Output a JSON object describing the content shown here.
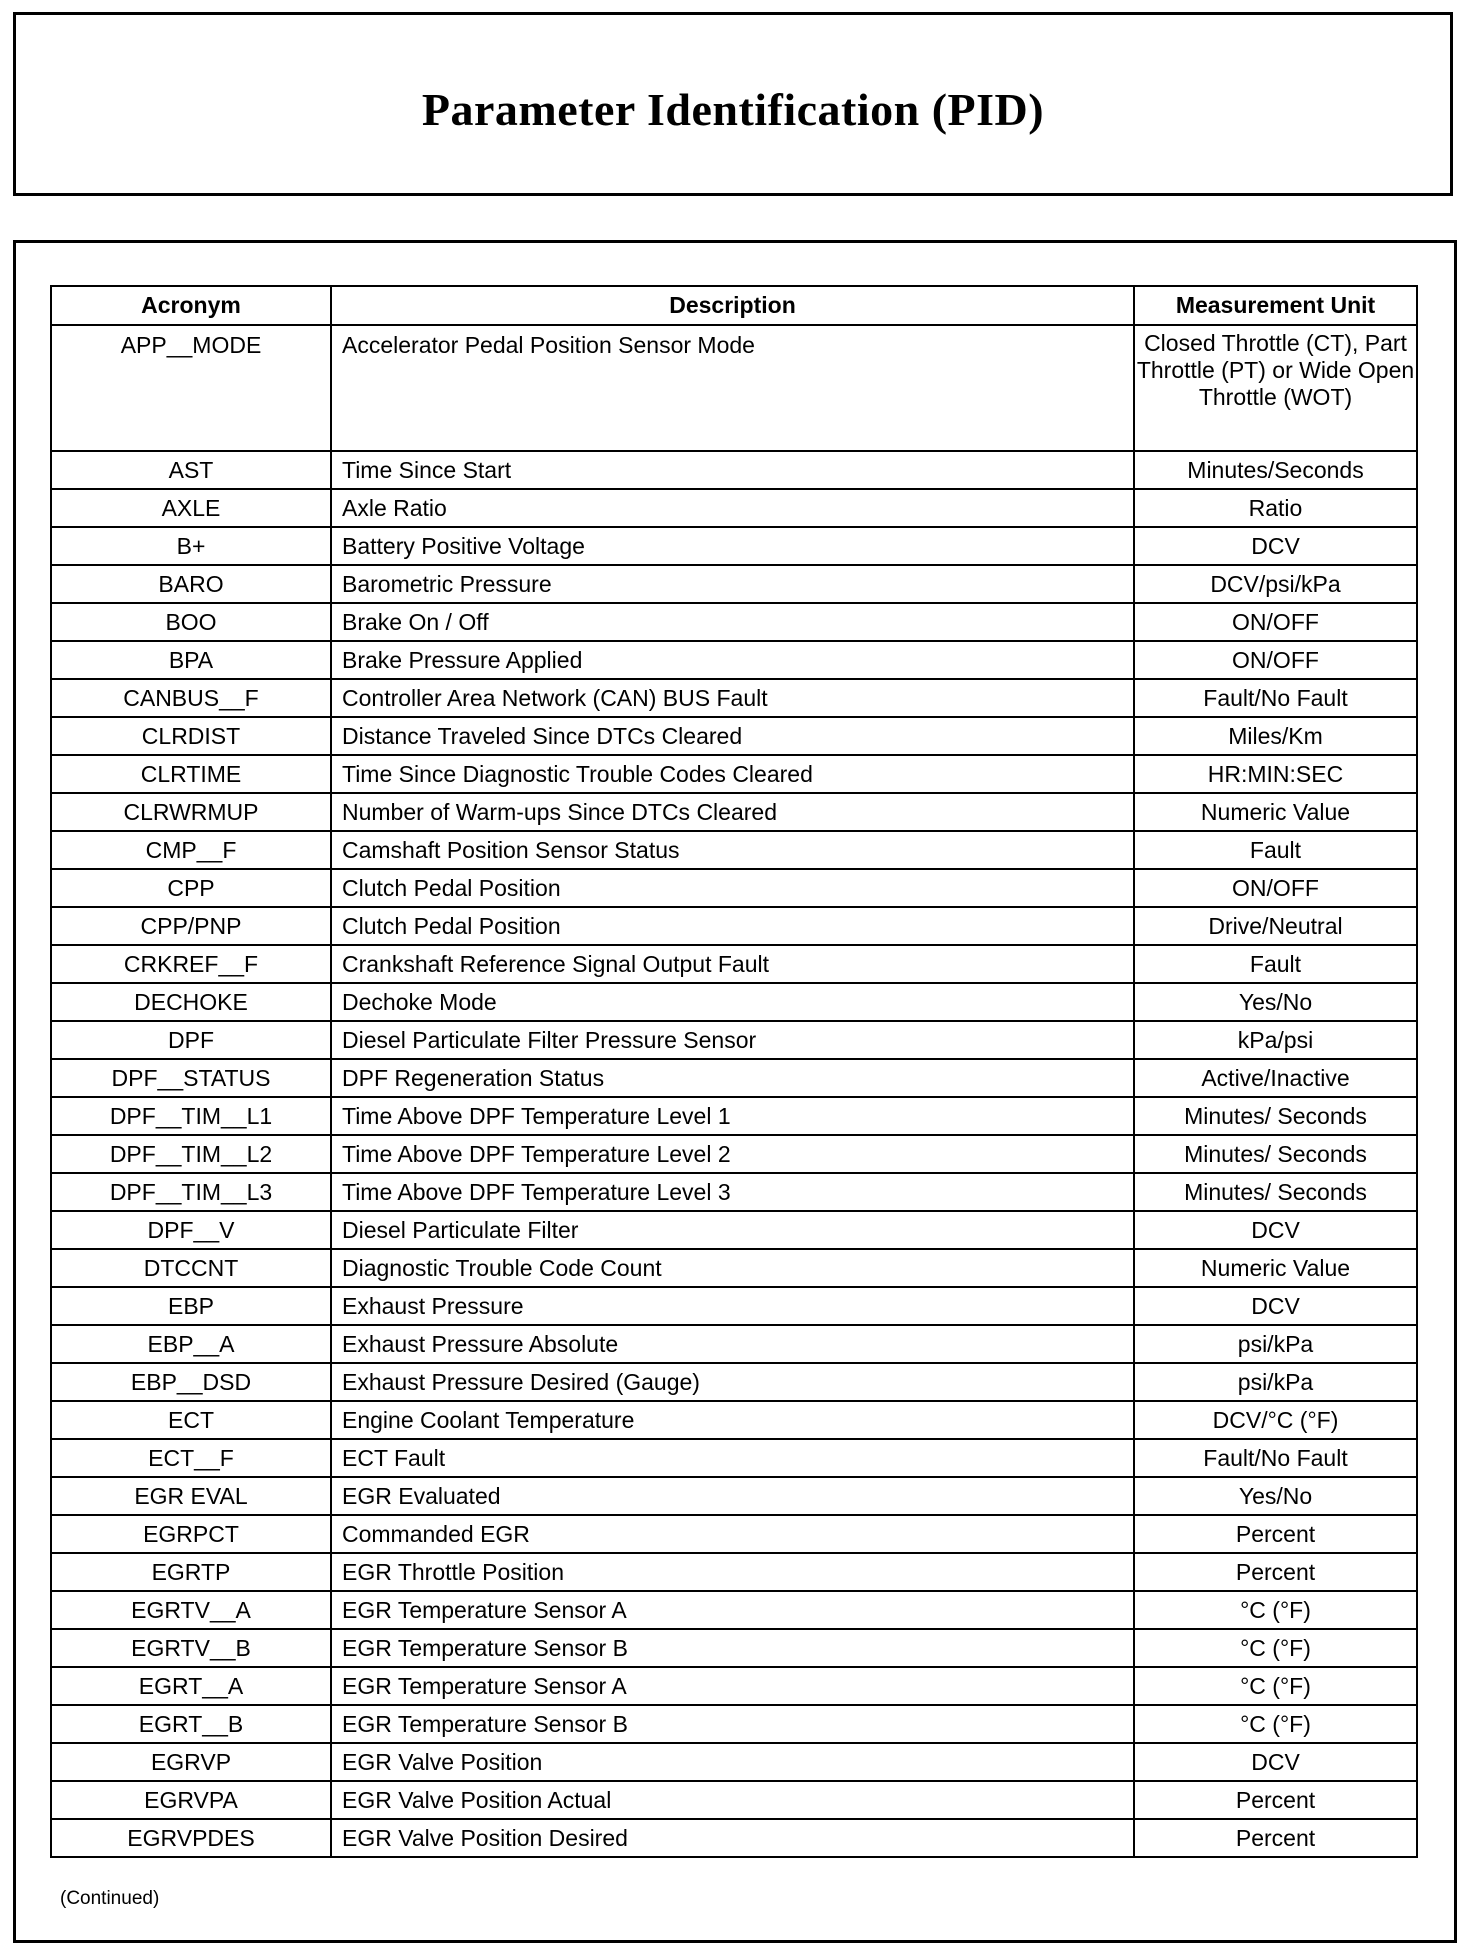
{
  "title": "Parameter Identification (PID)",
  "table": {
    "headers": [
      "Acronym",
      "Description",
      "Measurement Unit"
    ],
    "rows": [
      {
        "acronym": "APP__MODE",
        "description": "Accelerator Pedal Position Sensor Mode",
        "unit": "Closed Throttle (CT), Part Throttle (PT) or Wide Open Throttle (WOT)"
      },
      {
        "acronym": "AST",
        "description": "Time Since Start",
        "unit": "Minutes/Seconds"
      },
      {
        "acronym": "AXLE",
        "description": "Axle Ratio",
        "unit": "Ratio"
      },
      {
        "acronym": "B+",
        "description": "Battery Positive Voltage",
        "unit": "DCV"
      },
      {
        "acronym": "BARO",
        "description": "Barometric Pressure",
        "unit": "DCV/psi/kPa"
      },
      {
        "acronym": "BOO",
        "description": "Brake On / Off",
        "unit": "ON/OFF"
      },
      {
        "acronym": "BPA",
        "description": "Brake Pressure Applied",
        "unit": "ON/OFF"
      },
      {
        "acronym": "CANBUS__F",
        "description": "Controller Area Network (CAN) BUS Fault",
        "unit": "Fault/No Fault"
      },
      {
        "acronym": "CLRDIST",
        "description": "Distance Traveled Since DTCs Cleared",
        "unit": "Miles/Km"
      },
      {
        "acronym": "CLRTIME",
        "description": "Time Since Diagnostic Trouble Codes Cleared",
        "unit": "HR:MIN:SEC"
      },
      {
        "acronym": "CLRWRMUP",
        "description": "Number of Warm-ups Since DTCs Cleared",
        "unit": "Numeric Value"
      },
      {
        "acronym": "CMP__F",
        "description": "Camshaft Position Sensor Status",
        "unit": "Fault"
      },
      {
        "acronym": "CPP",
        "description": "Clutch Pedal Position",
        "unit": "ON/OFF"
      },
      {
        "acronym": "CPP/PNP",
        "description": "Clutch Pedal Position",
        "unit": "Drive/Neutral"
      },
      {
        "acronym": "CRKREF__F",
        "description": "Crankshaft Reference Signal Output Fault",
        "unit": "Fault"
      },
      {
        "acronym": "DECHOKE",
        "description": "Dechoke Mode",
        "unit": "Yes/No"
      },
      {
        "acronym": "DPF",
        "description": "Diesel Particulate Filter Pressure Sensor",
        "unit": "kPa/psi"
      },
      {
        "acronym": "DPF__STATUS",
        "description": "DPF Regeneration Status",
        "unit": "Active/Inactive"
      },
      {
        "acronym": "DPF__TIM__L1",
        "description": "Time Above DPF Temperature Level 1",
        "unit": "Minutes/ Seconds"
      },
      {
        "acronym": "DPF__TIM__L2",
        "description": "Time Above DPF Temperature Level 2",
        "unit": "Minutes/ Seconds"
      },
      {
        "acronym": "DPF__TIM__L3",
        "description": "Time Above DPF Temperature Level 3",
        "unit": "Minutes/ Seconds"
      },
      {
        "acronym": "DPF__V",
        "description": "Diesel Particulate Filter",
        "unit": "DCV"
      },
      {
        "acronym": "DTCCNT",
        "description": "Diagnostic Trouble Code Count",
        "unit": "Numeric Value"
      },
      {
        "acronym": "EBP",
        "description": "Exhaust Pressure",
        "unit": "DCV"
      },
      {
        "acronym": "EBP__A",
        "description": "Exhaust Pressure Absolute",
        "unit": "psi/kPa"
      },
      {
        "acronym": "EBP__DSD",
        "description": "Exhaust Pressure Desired (Gauge)",
        "unit": "psi/kPa"
      },
      {
        "acronym": "ECT",
        "description": "Engine Coolant Temperature",
        "unit": "DCV/°C (°F)"
      },
      {
        "acronym": "ECT__F",
        "description": "ECT Fault",
        "unit": "Fault/No Fault"
      },
      {
        "acronym": "EGR EVAL",
        "description": "EGR Evaluated",
        "unit": "Yes/No"
      },
      {
        "acronym": "EGRPCT",
        "description": "Commanded EGR",
        "unit": "Percent"
      },
      {
        "acronym": "EGRTP",
        "description": "EGR Throttle Position",
        "unit": "Percent"
      },
      {
        "acronym": "EGRTV__A",
        "description": "EGR Temperature Sensor A",
        "unit": "°C (°F)"
      },
      {
        "acronym": "EGRTV__B",
        "description": "EGR Temperature Sensor B",
        "unit": "°C (°F)"
      },
      {
        "acronym": "EGRT__A",
        "description": "EGR Temperature Sensor A",
        "unit": "°C (°F)"
      },
      {
        "acronym": "EGRT__B",
        "description": "EGR Temperature Sensor B",
        "unit": "°C (°F)"
      },
      {
        "acronym": "EGRVP",
        "description": "EGR Valve Position",
        "unit": "DCV"
      },
      {
        "acronym": "EGRVPA",
        "description": "EGR Valve Position Actual",
        "unit": "Percent"
      },
      {
        "acronym": "EGRVPDES",
        "description": "EGR Valve Position Desired",
        "unit": "Percent"
      }
    ]
  },
  "footer": {
    "continued": "(Continued)"
  }
}
